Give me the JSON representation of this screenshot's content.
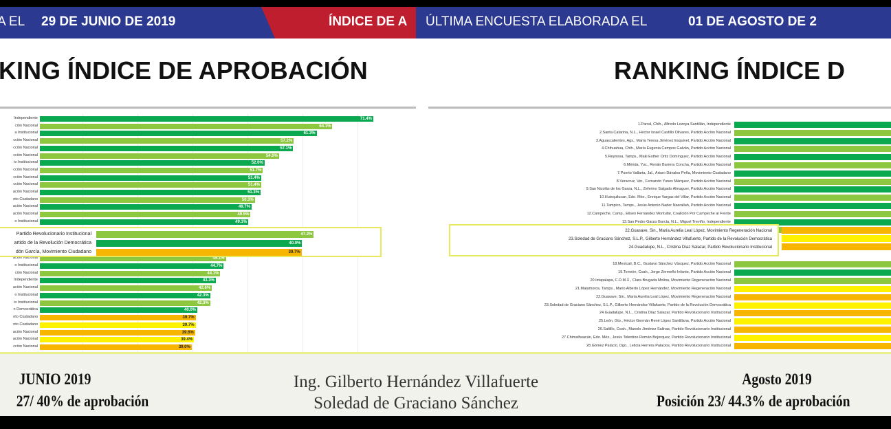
{
  "left": {
    "header_prefix": "A EL",
    "header_date": "29 DE JUNIO DE 2019",
    "header_right": "ÍNDICE DE A",
    "title": "KING ÍNDICE DE APROBACIÓN"
  },
  "right": {
    "header_prefix": "ÚLTIMA ENCUESTA ELABORADA EL",
    "header_date": "01 DE AGOSTO DE 2",
    "title": "RANKING ÍNDICE D"
  },
  "colors": {
    "dark_green": "#0aa84f",
    "light_green": "#8dc63f",
    "orange": "#f7b500",
    "yellow": "#fff200",
    "header_blue": "#2b3990",
    "header_red": "#be1e2d"
  },
  "chart_data": [
    {
      "type": "bar",
      "orientation": "horizontal",
      "title": "RANKING ÍNDICE DE APROBACIÓN",
      "period": "29 DE JUNIO DE 2019",
      "categories": [
        "Independiente",
        "ción Nacional",
        "a Institucional",
        "cción Nacional",
        "cción Nacional",
        "cción Nacional",
        "io Institucional",
        "cción Nacional",
        "cción Nacional",
        "cción Nacional",
        "ación Nacional",
        "nto Ciudadano",
        "ación Nacional",
        "ación Nacional",
        "o Institucional",
        "ación Nacional",
        "o Institucional",
        "ción Nacional",
        "Independiente",
        "ación Nacional",
        "o Institucional",
        "io Institucional",
        "n Democrática",
        "nto Ciudadano",
        "nto Ciudadano",
        "ación Nacional",
        "ación Nacional",
        "cción Nacional"
      ],
      "values": [
        71.4,
        64.1,
        61.3,
        57.2,
        57.1,
        54.6,
        52.0,
        51.7,
        51.4,
        51.4,
        51.3,
        50.3,
        49.7,
        49.5,
        49.1,
        45.1,
        44.7,
        44.1,
        43.3,
        42.6,
        42.3,
        42.3,
        40.0,
        39.7,
        39.7,
        39.6,
        39.4,
        39.0
      ],
      "colors": [
        "dark_green",
        "light_green",
        "dark_green",
        "light_green",
        "dark_green",
        "light_green",
        "dark_green",
        "light_green",
        "dark_green",
        "light_green",
        "dark_green",
        "light_green",
        "dark_green",
        "light_green",
        "dark_green",
        "light_green",
        "dark_green",
        "light_green",
        "dark_green",
        "light_green",
        "dark_green",
        "light_green",
        "dark_green",
        "orange",
        "yellow",
        "orange",
        "yellow",
        "orange"
      ],
      "labels": [
        "71.4%",
        "64.1%",
        "61.3%",
        "57.2%",
        "57.1%",
        "54.6%",
        "52.0%",
        "51.7%",
        "51.4%",
        "51.4%",
        "51.3%",
        "50.3%",
        "49.7%",
        "49.5%",
        "49.1%",
        "45.1%",
        "44.7%",
        "44.1%",
        "43.3%",
        "42.6%",
        "42.3%",
        "42.3%",
        "40.0%",
        "39.7%",
        "39.7%",
        "39.6%",
        "39.4%",
        "39.0%"
      ],
      "highlight": {
        "categories": [
          "Partido Revolucionario Institucional",
          "artido de la Revolución Democrática",
          "dón García,  Movimiento Ciudadano"
        ],
        "values": [
          47.2,
          40.0,
          39.7
        ],
        "labels": [
          "47.2%",
          "40.0%",
          "39.7%"
        ],
        "colors": [
          "light_green",
          "dark_green",
          "orange"
        ]
      }
    },
    {
      "type": "bar",
      "orientation": "horizontal",
      "title": "RANKING ÍNDICE D",
      "period": "01 DE AGOSTO DE 2",
      "categories": [
        "1.Parral, Chih., Alfredo Lozoya Santillán, Independiente",
        "2.Santa Catarina, N.L., Héctor Israel Castillo Olivares, Partido Acción Nacional",
        "3.Aguascalientes, Ags., María Teresa Jiménez Esquivel, Partido Acción Nacional",
        "4.Chihuahua, Chih., María Eugenia Campos Galván, Partido Acción Nacional",
        "5.Reynosa, Tamps., Maki Esther Ortiz Domínguez, Partido Acción Nacional",
        "6.Mérida, Yuc., Renán Barrera Concha, Partido Acción Nacional",
        "7.Puerto Vallarta, Jal., Arturo Dávalos Peña, Movimiento Ciudadano",
        "8.Veracruz, Ver., Fernando Yunes Márquez, Partido Acción Nacional",
        "9.San Nicolás de los Garza, N.L., Zeferino Salgado Almaguer, Partido Acción Nacional",
        "10.Huixquilucan, Edo. Méx., Enrique Vargas del Villar, Partido Acción Nacional",
        "11.Tampico, Tamps., Jesús Antonio Nader Nasrallah, Partido Acción Nacional",
        "12.Campeche, Camp., Eliseo Fernández Montufar, Coalición Por Campeche al Frente",
        "13.San Pedro Garza García, N.L., Miguel Treviño, Independiente",
        "",
        "18.Mexicali, B.C., Gustavo Sánchez Vásquez, Partido Acción Nacional",
        "19.Torreón, Coah., Jorge Zermeño Infante, Partido Acción Nacional",
        "20.Iztapalapa, C.D.M.X., Clara Brugada Molina, Movimiento Regeneración Nacional",
        "21.Matamoros, Tamps., Mario Alberto López Hernández, Movimiento Regeneración Nacional",
        "22.Guasave, Sin., María Aurelia Leal López, Movimiento Regeneración Nacional",
        "23.Soledad de Graciano Sánchez, S.L.P., Gilberto Hernández Villafuerte, Partido de la Revolución Democrática",
        "24.Guadalupe, N.L., Cristina Díaz Salazar, Partido Revolucionario Institucional",
        "25.León, Gto., Héctor Germán René López Santillana, Partido Acción Nacional",
        "26.Saltillo, Coah., Manolo Jiménez Salinas, Partido Revolucionario Institucional",
        "27.Chimalhuacán, Edo. Méx., Jesús Tolentino Román Bojorquez, Partido Revolucionario Institucional",
        "28.Gómez Palacio, Dgo., Leticia Herrera Palacios, Partido Revolucionario Institucional"
      ],
      "colors": [
        "dark_green",
        "light_green",
        "dark_green",
        "light_green",
        "dark_green",
        "light_green",
        "dark_green",
        "light_green",
        "dark_green",
        "light_green",
        "dark_green",
        "light_green",
        "dark_green",
        "light_green",
        "light_green",
        "dark_green",
        "light_green",
        "yellow",
        "orange",
        "yellow",
        "orange",
        "yellow",
        "orange",
        "yellow",
        "orange"
      ],
      "highlight": {
        "categories": [
          "22.Guasave, Sin., María Aurelia Leal López, Movimiento Regeneración Nacional",
          "23.Soledad de Graciano Sánchez, S.L.P., Gilberto Hernández Villafuerte, Partido de la Revolución Democrática",
          "24.Guadalupe, N.L., Cristina Díaz Salazar, Partido Revolucionario Institucional"
        ],
        "colors": [
          "orange",
          "yellow",
          "orange"
        ]
      }
    }
  ],
  "footer": {
    "left_line1": "JUNIO 2019",
    "left_line2": "27/ 40% de aprobación",
    "center_line1": "Ing. Gilberto Hernández Villafuerte",
    "center_line2": "Soledad de Graciano Sánchez",
    "right_line1": "Agosto 2019",
    "right_line2": "Posición 23/ 44.3% de aprobación"
  }
}
